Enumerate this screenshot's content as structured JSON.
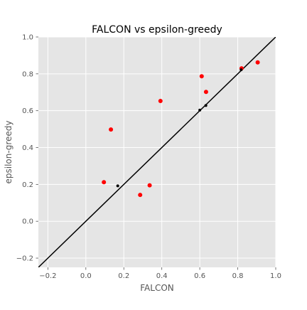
{
  "chart_data": {
    "type": "scatter",
    "title": "FALCON vs epsilon-greedy",
    "xlabel": "FALCON",
    "ylabel": "epsilon-greedy",
    "xlim": [
      -0.25,
      1.0
    ],
    "ylim": [
      -0.25,
      1.0
    ],
    "xticks": [
      -0.2,
      0.0,
      0.2,
      0.4,
      0.6,
      0.8,
      1.0
    ],
    "yticks": [
      -0.2,
      0.0,
      0.2,
      0.4,
      0.6,
      0.8,
      1.0
    ],
    "xtick_labels": [
      "−0.2",
      "0.0",
      "0.2",
      "0.4",
      "0.6",
      "0.8",
      "1.0"
    ],
    "ytick_labels": [
      "−0.2",
      "0.0",
      "0.2",
      "0.4",
      "0.6",
      "0.8",
      "1.0"
    ],
    "grid": true,
    "legend": false,
    "reference_line": {
      "slope": 1,
      "intercept": 0,
      "color": "#000000"
    },
    "colors": {
      "background": "#e5e5e5",
      "grid": "#ffffff",
      "red": "#ff0000",
      "black": "#000000",
      "text": "#555555",
      "title": "#000000"
    },
    "series": [
      {
        "color": "red",
        "points": [
          {
            "x": 0.095,
            "y": 0.212
          },
          {
            "x": 0.132,
            "y": 0.498
          },
          {
            "x": 0.286,
            "y": 0.143
          },
          {
            "x": 0.336,
            "y": 0.195
          },
          {
            "x": 0.393,
            "y": 0.653
          },
          {
            "x": 0.61,
            "y": 0.787
          },
          {
            "x": 0.633,
            "y": 0.702
          },
          {
            "x": 0.82,
            "y": 0.83
          },
          {
            "x": 0.905,
            "y": 0.862
          }
        ]
      },
      {
        "color": "black",
        "points": [
          {
            "x": 0.168,
            "y": 0.192
          },
          {
            "x": 0.6,
            "y": 0.603
          },
          {
            "x": 0.632,
            "y": 0.628
          },
          {
            "x": 0.818,
            "y": 0.822
          }
        ]
      }
    ]
  }
}
